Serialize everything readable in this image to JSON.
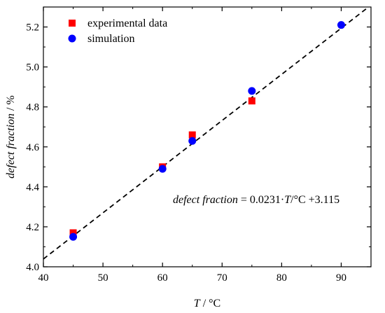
{
  "chart_data": {
    "type": "scatter",
    "xlabel_var": "T",
    "xlabel_unit": " / °C",
    "ylabel_var": "defect fraction",
    "ylabel_unit": " / %",
    "xlim": [
      40,
      95
    ],
    "ylim": [
      4.0,
      5.3
    ],
    "xticks": [
      40,
      50,
      60,
      70,
      80,
      90
    ],
    "yticks": [
      4.0,
      4.2,
      4.4,
      4.6,
      4.8,
      5.0,
      5.2
    ],
    "legend_position": "top-left",
    "series": [
      {
        "name": "experimental data",
        "marker": "square",
        "color": "#ff0000",
        "x": [
          45,
          60,
          65,
          75
        ],
        "y": [
          4.17,
          4.5,
          4.66,
          4.83
        ]
      },
      {
        "name": "simulation",
        "marker": "circle",
        "color": "#0000ff",
        "x": [
          45,
          60,
          65,
          75,
          90
        ],
        "y": [
          4.15,
          4.49,
          4.63,
          4.88,
          5.21
        ]
      }
    ],
    "fit": {
      "style": "dashed",
      "color": "#000000",
      "slope": 0.0231,
      "intercept": 3.115
    },
    "annotation": {
      "var": "defect fraction",
      "eq": " = 0.0231·",
      "var2": "T",
      "rest": "/°C +3.115"
    }
  }
}
